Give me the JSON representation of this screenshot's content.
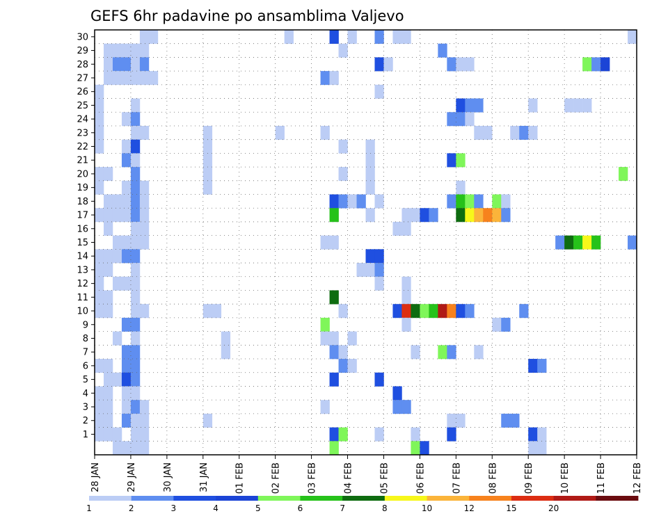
{
  "chart_data": {
    "type": "heatmap",
    "title": "GEFS 6hr padavine po ansamblima Valjevo",
    "xlabel": "",
    "ylabel": "",
    "x_range_days": [
      0,
      15
    ],
    "x_tick_labels": [
      "28 JAN",
      "29 JAN",
      "30 JAN",
      "31 JAN",
      "01 FEB",
      "02 FEB",
      "03 FEB",
      "04 FEB",
      "05 FEB",
      "06 FEB",
      "07 FEB",
      "08 FEB",
      "09 FEB",
      "10 FEB",
      "11 FEB",
      "12 FEB"
    ],
    "y_range": [
      0,
      30
    ],
    "y_tick_labels": [
      1,
      2,
      3,
      4,
      5,
      6,
      7,
      8,
      9,
      10,
      11,
      12,
      13,
      14,
      15,
      16,
      17,
      18,
      19,
      20,
      21,
      22,
      23,
      24,
      25,
      26,
      27,
      28,
      29,
      30
    ],
    "grid": true,
    "colorbar": {
      "labels": [
        "1",
        "2",
        "3",
        "4",
        "5",
        "6",
        "7",
        "8",
        "10",
        "12",
        "15",
        "20"
      ],
      "colors": [
        "#bccdf5",
        "#5f8ef0",
        "#1f4fe0",
        "#1b44d6",
        "#7ff65a",
        "#26c21a",
        "#0e6c10",
        "#f7f71a",
        "#fbb43a",
        "#f7821d",
        "#dc2d12",
        "#b01a16",
        "#6b0c10"
      ]
    },
    "cells": [
      {
        "m": 30,
        "c": [
          [
            5,
            1
          ],
          [
            6,
            1
          ],
          [
            21,
            1
          ],
          [
            26,
            3
          ],
          [
            28,
            1
          ],
          [
            31,
            2
          ],
          [
            33,
            1
          ],
          [
            34,
            1
          ],
          [
            59,
            1
          ]
        ]
      },
      {
        "m": 29,
        "c": [
          [
            1,
            1
          ],
          [
            2,
            1
          ],
          [
            3,
            1
          ],
          [
            4,
            1
          ],
          [
            5,
            1
          ],
          [
            27,
            1
          ],
          [
            38,
            2
          ]
        ]
      },
      {
        "m": 28,
        "c": [
          [
            1,
            1
          ],
          [
            2,
            2
          ],
          [
            3,
            2
          ],
          [
            4,
            1
          ],
          [
            5,
            2
          ],
          [
            31,
            3
          ],
          [
            32,
            1
          ],
          [
            39,
            2
          ],
          [
            40,
            1
          ],
          [
            41,
            1
          ],
          [
            54,
            5
          ],
          [
            55,
            2
          ],
          [
            56,
            4
          ]
        ]
      },
      {
        "m": 27,
        "c": [
          [
            1,
            1
          ],
          [
            2,
            1
          ],
          [
            3,
            1
          ],
          [
            4,
            1
          ],
          [
            5,
            1
          ],
          [
            6,
            1
          ],
          [
            25,
            2
          ],
          [
            26,
            1
          ]
        ]
      },
      {
        "m": 26,
        "c": [
          [
            0,
            1
          ],
          [
            31,
            1
          ]
        ]
      },
      {
        "m": 25,
        "c": [
          [
            0,
            1
          ],
          [
            4,
            1
          ],
          [
            40,
            3
          ],
          [
            41,
            2
          ],
          [
            42,
            2
          ],
          [
            48,
            1
          ],
          [
            52,
            1
          ],
          [
            53,
            1
          ],
          [
            54,
            1
          ]
        ]
      },
      {
        "m": 24,
        "c": [
          [
            0,
            1
          ],
          [
            3,
            1
          ],
          [
            4,
            2
          ],
          [
            39,
            2
          ],
          [
            40,
            2
          ],
          [
            41,
            1
          ]
        ]
      },
      {
        "m": 23,
        "c": [
          [
            0,
            1
          ],
          [
            5,
            1
          ],
          [
            4,
            1
          ],
          [
            12,
            1
          ],
          [
            20,
            1
          ],
          [
            25,
            1
          ],
          [
            42,
            1
          ],
          [
            43,
            1
          ],
          [
            46,
            1
          ],
          [
            47,
            2
          ],
          [
            48,
            1
          ]
        ]
      },
      {
        "m": 22,
        "c": [
          [
            0,
            1
          ],
          [
            3,
            1
          ],
          [
            4,
            3
          ],
          [
            12,
            1
          ],
          [
            27,
            1
          ],
          [
            30,
            1
          ]
        ]
      },
      {
        "m": 21,
        "c": [
          [
            3,
            2
          ],
          [
            4,
            1
          ],
          [
            12,
            1
          ],
          [
            30,
            1
          ],
          [
            39,
            3
          ],
          [
            40,
            5
          ]
        ]
      },
      {
        "m": 20,
        "c": [
          [
            0,
            1
          ],
          [
            1,
            1
          ],
          [
            4,
            2
          ],
          [
            12,
            1
          ],
          [
            27,
            1
          ],
          [
            30,
            1
          ],
          [
            58,
            5
          ]
        ]
      },
      {
        "m": 19,
        "c": [
          [
            0,
            1
          ],
          [
            3,
            1
          ],
          [
            4,
            2
          ],
          [
            5,
            1
          ],
          [
            12,
            1
          ],
          [
            30,
            1
          ],
          [
            40,
            1
          ]
        ]
      },
      {
        "m": 18,
        "c": [
          [
            1,
            1
          ],
          [
            2,
            1
          ],
          [
            3,
            1
          ],
          [
            4,
            2
          ],
          [
            5,
            1
          ],
          [
            26,
            3
          ],
          [
            27,
            2
          ],
          [
            28,
            1
          ],
          [
            29,
            2
          ],
          [
            31,
            1
          ],
          [
            39,
            2
          ],
          [
            40,
            6
          ],
          [
            41,
            5
          ],
          [
            42,
            2
          ],
          [
            44,
            5
          ],
          [
            45,
            1
          ]
        ]
      },
      {
        "m": 17,
        "c": [
          [
            0,
            1
          ],
          [
            1,
            1
          ],
          [
            2,
            1
          ],
          [
            3,
            1
          ],
          [
            4,
            2
          ],
          [
            5,
            1
          ],
          [
            26,
            6
          ],
          [
            30,
            1
          ],
          [
            34,
            1
          ],
          [
            35,
            1
          ],
          [
            36,
            3
          ],
          [
            37,
            2
          ],
          [
            40,
            7
          ],
          [
            41,
            8
          ],
          [
            42,
            9
          ],
          [
            43,
            10
          ],
          [
            44,
            9
          ],
          [
            45,
            2
          ]
        ]
      },
      {
        "m": 16,
        "c": [
          [
            1,
            1
          ],
          [
            4,
            1
          ],
          [
            5,
            1
          ],
          [
            33,
            1
          ],
          [
            34,
            1
          ]
        ]
      },
      {
        "m": 15,
        "c": [
          [
            2,
            1
          ],
          [
            3,
            1
          ],
          [
            4,
            1
          ],
          [
            5,
            1
          ],
          [
            25,
            1
          ],
          [
            26,
            1
          ],
          [
            51,
            2
          ],
          [
            52,
            7
          ],
          [
            53,
            6
          ],
          [
            54,
            8
          ],
          [
            55,
            6
          ],
          [
            59,
            2
          ]
        ]
      },
      {
        "m": 14,
        "c": [
          [
            0,
            1
          ],
          [
            1,
            1
          ],
          [
            2,
            1
          ],
          [
            3,
            2
          ],
          [
            4,
            2
          ],
          [
            30,
            3
          ],
          [
            31,
            3
          ]
        ]
      },
      {
        "m": 13,
        "c": [
          [
            0,
            1
          ],
          [
            1,
            1
          ],
          [
            4,
            1
          ],
          [
            29,
            1
          ],
          [
            30,
            1
          ],
          [
            31,
            2
          ]
        ]
      },
      {
        "m": 12,
        "c": [
          [
            0,
            1
          ],
          [
            2,
            1
          ],
          [
            3,
            1
          ],
          [
            4,
            1
          ],
          [
            31,
            1
          ],
          [
            34,
            1
          ]
        ]
      },
      {
        "m": 11,
        "c": [
          [
            0,
            1
          ],
          [
            1,
            1
          ],
          [
            4,
            1
          ],
          [
            26,
            7
          ],
          [
            34,
            1
          ]
        ]
      },
      {
        "m": 10,
        "c": [
          [
            0,
            1
          ],
          [
            1,
            1
          ],
          [
            4,
            1
          ],
          [
            5,
            1
          ],
          [
            12,
            1
          ],
          [
            13,
            1
          ],
          [
            27,
            1
          ],
          [
            33,
            3
          ],
          [
            34,
            11
          ],
          [
            35,
            7
          ],
          [
            36,
            5
          ],
          [
            37,
            6
          ],
          [
            38,
            12
          ],
          [
            39,
            10
          ],
          [
            40,
            3
          ],
          [
            41,
            2
          ],
          [
            47,
            2
          ]
        ]
      },
      {
        "m": 9,
        "c": [
          [
            3,
            2
          ],
          [
            4,
            2
          ],
          [
            25,
            5
          ],
          [
            34,
            1
          ],
          [
            44,
            1
          ],
          [
            45,
            2
          ]
        ]
      },
      {
        "m": 8,
        "c": [
          [
            2,
            1
          ],
          [
            4,
            1
          ],
          [
            14,
            1
          ],
          [
            25,
            1
          ],
          [
            26,
            1
          ],
          [
            28,
            1
          ]
        ]
      },
      {
        "m": 7,
        "c": [
          [
            3,
            2
          ],
          [
            4,
            2
          ],
          [
            14,
            1
          ],
          [
            26,
            2
          ],
          [
            27,
            1
          ],
          [
            35,
            1
          ],
          [
            38,
            5
          ],
          [
            39,
            2
          ],
          [
            42,
            1
          ]
        ]
      },
      {
        "m": 6,
        "c": [
          [
            0,
            1
          ],
          [
            1,
            1
          ],
          [
            3,
            2
          ],
          [
            4,
            2
          ],
          [
            27,
            2
          ],
          [
            28,
            1
          ],
          [
            48,
            3
          ],
          [
            49,
            2
          ]
        ]
      },
      {
        "m": 5,
        "c": [
          [
            1,
            1
          ],
          [
            2,
            1
          ],
          [
            3,
            3
          ],
          [
            4,
            2
          ],
          [
            26,
            3
          ],
          [
            31,
            3
          ]
        ]
      },
      {
        "m": 4,
        "c": [
          [
            0,
            1
          ],
          [
            1,
            1
          ],
          [
            3,
            1
          ],
          [
            4,
            1
          ],
          [
            33,
            3
          ]
        ]
      },
      {
        "m": 3,
        "c": [
          [
            0,
            1
          ],
          [
            1,
            1
          ],
          [
            3,
            1
          ],
          [
            4,
            2
          ],
          [
            5,
            1
          ],
          [
            25,
            1
          ],
          [
            33,
            2
          ],
          [
            34,
            2
          ]
        ]
      },
      {
        "m": 2,
        "c": [
          [
            0,
            1
          ],
          [
            1,
            1
          ],
          [
            3,
            2
          ],
          [
            4,
            1
          ],
          [
            5,
            1
          ],
          [
            12,
            1
          ],
          [
            39,
            1
          ],
          [
            40,
            1
          ],
          [
            45,
            2
          ],
          [
            46,
            2
          ]
        ]
      },
      {
        "m": 1,
        "c": [
          [
            0,
            1
          ],
          [
            1,
            1
          ],
          [
            2,
            1
          ],
          [
            4,
            1
          ],
          [
            5,
            1
          ],
          [
            26,
            3
          ],
          [
            27,
            5
          ],
          [
            31,
            1
          ],
          [
            35,
            1
          ],
          [
            39,
            3
          ],
          [
            48,
            3
          ],
          [
            49,
            1
          ]
        ]
      },
      {
        "m": 0,
        "c": [
          [
            2,
            1
          ],
          [
            3,
            1
          ],
          [
            4,
            1
          ],
          [
            5,
            1
          ],
          [
            26,
            5
          ],
          [
            35,
            5
          ],
          [
            36,
            3
          ],
          [
            48,
            1
          ],
          [
            49,
            1
          ]
        ]
      }
    ]
  }
}
